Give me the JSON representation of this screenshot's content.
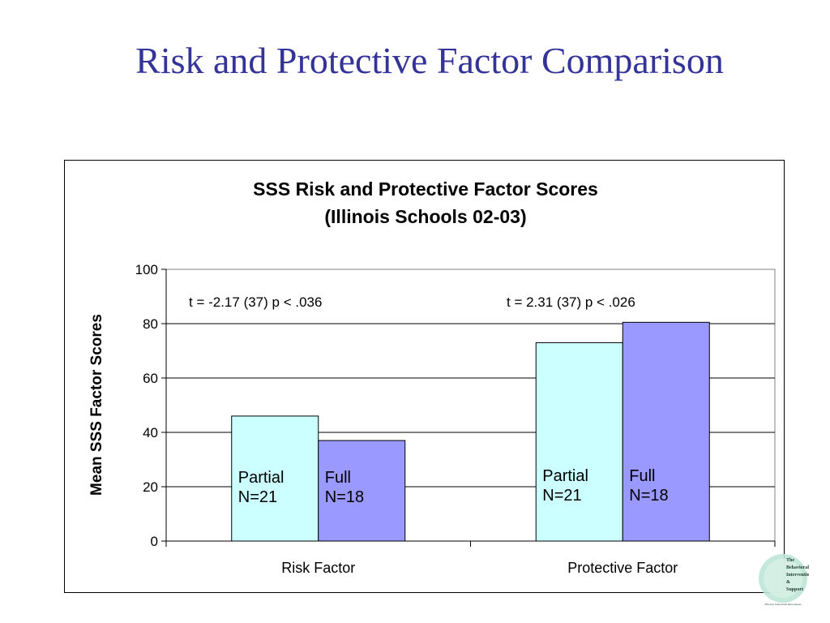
{
  "slide": {
    "title": "Risk and Protective Factor Comparison"
  },
  "logo": {
    "lines": [
      "The",
      "Behavioral",
      "Intervention",
      "&",
      "Support"
    ],
    "tagline": "Effective Schoolwide Interventions"
  },
  "chart_data": {
    "type": "bar",
    "title": "SSS Risk and Protective Factor Scores",
    "subtitle": "(Illinois Schools 02-03)",
    "ylabel": "Mean SSS Factor Scores",
    "xlabel": "",
    "ylim": [
      0,
      100
    ],
    "yticks": [
      "0",
      "20",
      "40",
      "60",
      "80",
      "100"
    ],
    "grid": true,
    "categories": [
      "Risk Factor",
      "Protective Factor"
    ],
    "series": [
      {
        "name": "Partial",
        "values": [
          46,
          73
        ],
        "color": "#ccffff",
        "labels": [
          "Partial\nN=21",
          "Partial\nN=21"
        ]
      },
      {
        "name": "Full",
        "values": [
          37,
          80.5
        ],
        "color": "#9999ff",
        "labels": [
          "Full\nN=18",
          "Full\nN=18"
        ]
      }
    ],
    "annotations": [
      "t = -2.17 (37) p < .036",
      "t = 2.31 (37)  p < .026"
    ]
  }
}
